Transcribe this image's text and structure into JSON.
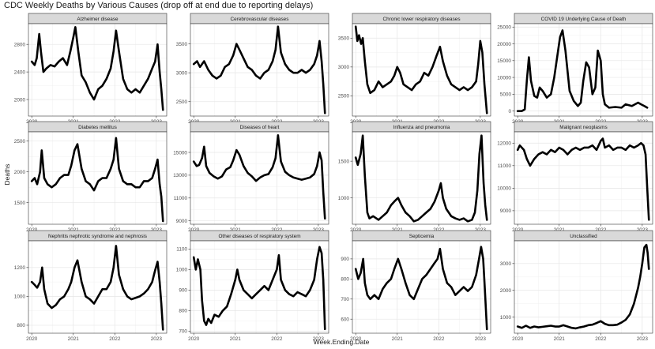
{
  "title": "CDC Weekly Deaths by Various Causes (drop off at end due to reporting delays)",
  "chart_data": {
    "type": "line",
    "title": "CDC Weekly Deaths by Various Causes (drop off at end due to reporting delays)",
    "xlabel": "Week.Ending.Date",
    "ylabel": "Deaths",
    "x_ticks": [
      "2020",
      "2021",
      "2022",
      "2023"
    ],
    "x_range": [
      2019.92,
      2023.25
    ],
    "grid": true,
    "line_color": "#000000",
    "panels": [
      {
        "name": "Alzheimer disease",
        "ylim": [
          1760,
          3100
        ],
        "y_ticks": [
          2000,
          2400,
          2800
        ],
        "x": [
          2020.0,
          2020.07,
          2020.12,
          2020.18,
          2020.22,
          2020.28,
          2020.35,
          2020.45,
          2020.55,
          2020.65,
          2020.75,
          2020.85,
          2020.93,
          2021.0,
          2021.05,
          2021.12,
          2021.2,
          2021.3,
          2021.4,
          2021.5,
          2021.6,
          2021.7,
          2021.8,
          2021.9,
          2021.97,
          2022.03,
          2022.1,
          2022.2,
          2022.3,
          2022.4,
          2022.5,
          2022.6,
          2022.7,
          2022.8,
          2022.9,
          2022.97,
          2023.03,
          2023.08,
          2023.12,
          2023.16
        ],
        "y": [
          2550,
          2500,
          2600,
          2950,
          2700,
          2400,
          2450,
          2500,
          2480,
          2550,
          2600,
          2500,
          2700,
          2900,
          3050,
          2700,
          2350,
          2250,
          2100,
          2000,
          2150,
          2200,
          2300,
          2450,
          2700,
          3000,
          2700,
          2300,
          2150,
          2100,
          2150,
          2100,
          2200,
          2300,
          2450,
          2550,
          2800,
          2400,
          2150,
          1850
        ]
      },
      {
        "name": "Cerebrovascular diseases",
        "ylim": [
          2250,
          3850
        ],
        "y_ticks": [
          2500,
          3000,
          3500
        ],
        "x": [
          2020.0,
          2020.08,
          2020.15,
          2020.25,
          2020.35,
          2020.45,
          2020.55,
          2020.65,
          2020.75,
          2020.85,
          2020.95,
          2021.03,
          2021.1,
          2021.2,
          2021.3,
          2021.4,
          2021.5,
          2021.6,
          2021.7,
          2021.8,
          2021.9,
          2021.97,
          2022.03,
          2022.1,
          2022.2,
          2022.3,
          2022.4,
          2022.5,
          2022.6,
          2022.7,
          2022.8,
          2022.9,
          2022.97,
          2023.03,
          2023.08,
          2023.12,
          2023.16
        ],
        "y": [
          3150,
          3200,
          3100,
          3200,
          3050,
          2950,
          2900,
          2950,
          3100,
          3150,
          3300,
          3500,
          3400,
          3250,
          3100,
          3050,
          2950,
          2900,
          3000,
          3050,
          3200,
          3400,
          3800,
          3350,
          3150,
          3050,
          3000,
          3000,
          3050,
          3000,
          3050,
          3150,
          3300,
          3550,
          3200,
          2800,
          2300
        ]
      },
      {
        "name": "Chronic lower respiratory diseases",
        "ylim": [
          2150,
          3750
        ],
        "y_ticks": [
          2500,
          3000,
          3500
        ],
        "x": [
          2020.0,
          2020.04,
          2020.08,
          2020.13,
          2020.17,
          2020.22,
          2020.28,
          2020.35,
          2020.45,
          2020.55,
          2020.65,
          2020.75,
          2020.85,
          2020.93,
          2021.0,
          2021.07,
          2021.15,
          2021.25,
          2021.35,
          2021.45,
          2021.55,
          2021.65,
          2021.75,
          2021.85,
          2021.95,
          2022.03,
          2022.1,
          2022.2,
          2022.3,
          2022.4,
          2022.5,
          2022.6,
          2022.7,
          2022.8,
          2022.9,
          2022.95,
          2023.0,
          2023.05,
          2023.1,
          2023.16
        ],
        "y": [
          3700,
          3450,
          3550,
          3400,
          3500,
          3100,
          2700,
          2550,
          2600,
          2750,
          2650,
          2700,
          2750,
          2850,
          3000,
          2900,
          2700,
          2650,
          2600,
          2700,
          2750,
          2900,
          2850,
          3000,
          3200,
          3350,
          3100,
          2850,
          2700,
          2650,
          2600,
          2650,
          2600,
          2650,
          2750,
          3050,
          3450,
          3250,
          2700,
          2200
        ]
      },
      {
        "name": "COVID 19 Underlying Cause of Death",
        "ylim": [
          -1500,
          26000
        ],
        "y_ticks": [
          0,
          5000,
          10000,
          15000,
          20000,
          25000
        ],
        "x": [
          2020.0,
          2020.1,
          2020.17,
          2020.22,
          2020.27,
          2020.32,
          2020.4,
          2020.47,
          2020.53,
          2020.6,
          2020.7,
          2020.8,
          2020.88,
          2020.95,
          2021.02,
          2021.08,
          2021.15,
          2021.25,
          2021.35,
          2021.45,
          2021.52,
          2021.58,
          2021.65,
          2021.72,
          2021.8,
          2021.87,
          2021.93,
          2022.0,
          2022.05,
          2022.1,
          2022.2,
          2022.35,
          2022.5,
          2022.6,
          2022.75,
          2022.9,
          2022.97,
          2023.05,
          2023.12
        ],
        "y": [
          0,
          0,
          500,
          9000,
          16000,
          9000,
          4500,
          4000,
          7000,
          6000,
          4000,
          5000,
          10000,
          16000,
          22000,
          24000,
          18000,
          6000,
          3000,
          1500,
          2500,
          9000,
          14500,
          13000,
          5000,
          7000,
          18000,
          15000,
          5000,
          2000,
          1000,
          1200,
          1000,
          2000,
          1500,
          2500,
          2000,
          1500,
          1000
        ]
      },
      {
        "name": "Diabetes mellitus",
        "ylim": [
          1150,
          2650
        ],
        "y_ticks": [
          1500,
          2000,
          2500
        ],
        "x": [
          2020.0,
          2020.07,
          2020.13,
          2020.2,
          2020.24,
          2020.3,
          2020.38,
          2020.48,
          2020.58,
          2020.68,
          2020.78,
          2020.88,
          2020.95,
          2021.03,
          2021.1,
          2021.2,
          2021.3,
          2021.4,
          2021.5,
          2021.6,
          2021.7,
          2021.8,
          2021.9,
          2021.97,
          2022.03,
          2022.1,
          2022.2,
          2022.3,
          2022.4,
          2022.5,
          2022.6,
          2022.7,
          2022.8,
          2022.9,
          2022.97,
          2023.03,
          2023.08,
          2023.12,
          2023.16
        ],
        "y": [
          1850,
          1900,
          1800,
          2000,
          2350,
          1900,
          1800,
          1750,
          1800,
          1900,
          1950,
          1950,
          2100,
          2350,
          2450,
          2050,
          1850,
          1800,
          1700,
          1850,
          1900,
          1900,
          2050,
          2200,
          2550,
          2050,
          1850,
          1800,
          1800,
          1750,
          1750,
          1850,
          1850,
          1900,
          2050,
          2200,
          1800,
          1600,
          1200
        ]
      },
      {
        "name": "Diseases of heart",
        "ylim": [
          8700,
          16800
        ],
        "y_ticks": [
          9000,
          11000,
          13000,
          15000
        ],
        "x": [
          2020.0,
          2020.07,
          2020.13,
          2020.2,
          2020.25,
          2020.3,
          2020.38,
          2020.48,
          2020.58,
          2020.68,
          2020.78,
          2020.88,
          2020.95,
          2021.03,
          2021.1,
          2021.2,
          2021.3,
          2021.4,
          2021.5,
          2021.6,
          2021.7,
          2021.8,
          2021.9,
          2021.97,
          2022.03,
          2022.1,
          2022.2,
          2022.3,
          2022.4,
          2022.5,
          2022.6,
          2022.7,
          2022.8,
          2022.9,
          2022.97,
          2023.03,
          2023.08,
          2023.12,
          2023.16
        ],
        "y": [
          14200,
          13800,
          13900,
          14500,
          15500,
          13800,
          13200,
          12900,
          12700,
          12900,
          13500,
          13700,
          14300,
          15200,
          14800,
          13800,
          13200,
          12900,
          12500,
          12800,
          13000,
          13100,
          13700,
          14500,
          16500,
          14200,
          13300,
          13000,
          12800,
          12700,
          12600,
          12700,
          12800,
          13100,
          13800,
          15000,
          14300,
          11500,
          9200
        ]
      },
      {
        "name": "Influenza and pneumonia",
        "ylim": [
          640,
          1900
        ],
        "y_ticks": [
          1000,
          1500
        ],
        "x": [
          2020.0,
          2020.05,
          2020.12,
          2020.17,
          2020.22,
          2020.28,
          2020.33,
          2020.42,
          2020.55,
          2020.65,
          2020.75,
          2020.85,
          2020.93,
          2021.02,
          2021.1,
          2021.2,
          2021.3,
          2021.4,
          2021.5,
          2021.6,
          2021.7,
          2021.8,
          2021.9,
          2022.0,
          2022.05,
          2022.1,
          2022.18,
          2022.3,
          2022.4,
          2022.5,
          2022.6,
          2022.7,
          2022.8,
          2022.87,
          2022.93,
          2022.98,
          2023.03,
          2023.08,
          2023.12,
          2023.16
        ],
        "y": [
          1550,
          1450,
          1600,
          1850,
          1300,
          800,
          720,
          750,
          700,
          750,
          800,
          900,
          950,
          1000,
          900,
          800,
          750,
          680,
          700,
          750,
          800,
          850,
          950,
          1100,
          1200,
          1000,
          850,
          750,
          720,
          700,
          720,
          680,
          700,
          800,
          1100,
          1600,
          1850,
          1200,
          900,
          700
        ]
      },
      {
        "name": "Malignant neoplasms",
        "ylim": [
          8400,
          12500
        ],
        "y_ticks": [
          9000,
          10000,
          11000,
          12000
        ],
        "x": [
          2020.0,
          2020.05,
          2020.1,
          2020.15,
          2020.22,
          2020.3,
          2020.4,
          2020.5,
          2020.6,
          2020.7,
          2020.8,
          2020.9,
          2021.0,
          2021.1,
          2021.2,
          2021.3,
          2021.4,
          2021.5,
          2021.6,
          2021.7,
          2021.8,
          2021.9,
          2022.0,
          2022.05,
          2022.1,
          2022.2,
          2022.3,
          2022.4,
          2022.5,
          2022.6,
          2022.7,
          2022.8,
          2022.9,
          2022.97,
          2023.03,
          2023.08,
          2023.12,
          2023.16
        ],
        "y": [
          11700,
          11900,
          11800,
          11700,
          11300,
          11000,
          11300,
          11500,
          11600,
          11500,
          11700,
          11600,
          11800,
          11700,
          11500,
          11700,
          11800,
          11700,
          11800,
          11800,
          11900,
          11700,
          12100,
          12200,
          11800,
          11900,
          11700,
          11800,
          11800,
          11700,
          11900,
          11800,
          11900,
          12000,
          11900,
          11500,
          10000,
          8600
        ]
      },
      {
        "name": "Nephritis nephrotic syndrome and nephrosis",
        "ylim": [
          745,
          1385
        ],
        "y_ticks": [
          800,
          1000,
          1200
        ],
        "x": [
          2020.0,
          2020.07,
          2020.13,
          2020.2,
          2020.25,
          2020.3,
          2020.38,
          2020.48,
          2020.58,
          2020.68,
          2020.78,
          2020.88,
          2020.95,
          2021.03,
          2021.1,
          2021.2,
          2021.3,
          2021.4,
          2021.5,
          2021.6,
          2021.7,
          2021.8,
          2021.9,
          2021.97,
          2022.03,
          2022.1,
          2022.2,
          2022.3,
          2022.4,
          2022.5,
          2022.6,
          2022.7,
          2022.8,
          2022.9,
          2022.97,
          2023.03,
          2023.08,
          2023.12,
          2023.16
        ],
        "y": [
          1100,
          1080,
          1060,
          1100,
          1200,
          1050,
          950,
          920,
          940,
          980,
          1000,
          1050,
          1100,
          1200,
          1250,
          1100,
          1000,
          980,
          950,
          1000,
          1050,
          1050,
          1100,
          1200,
          1350,
          1150,
          1050,
          1000,
          980,
          990,
          1000,
          1020,
          1050,
          1100,
          1180,
          1240,
          1100,
          950,
          770
        ]
      },
      {
        "name": "Other diseases of respiratory system",
        "ylim": [
          690,
          1140
        ],
        "y_ticks": [
          700,
          800,
          900,
          1000,
          1100
        ],
        "x": [
          2020.0,
          2020.05,
          2020.1,
          2020.16,
          2020.2,
          2020.25,
          2020.3,
          2020.35,
          2020.42,
          2020.5,
          2020.6,
          2020.7,
          2020.8,
          2020.9,
          2021.0,
          2021.05,
          2021.1,
          2021.2,
          2021.3,
          2021.4,
          2021.5,
          2021.6,
          2021.7,
          2021.8,
          2021.9,
          2022.0,
          2022.05,
          2022.1,
          2022.2,
          2022.3,
          2022.4,
          2022.5,
          2022.6,
          2022.7,
          2022.8,
          2022.9,
          2022.97,
          2023.03,
          2023.08,
          2023.12,
          2023.16
        ],
        "y": [
          1060,
          1000,
          1050,
          1000,
          850,
          750,
          730,
          760,
          740,
          780,
          770,
          800,
          820,
          880,
          950,
          1000,
          950,
          900,
          880,
          860,
          880,
          900,
          920,
          900,
          950,
          1000,
          1070,
          950,
          900,
          880,
          870,
          890,
          880,
          870,
          900,
          950,
          1050,
          1110,
          1080,
          950,
          710
        ]
      },
      {
        "name": "Septicemia",
        "ylim": [
          530,
          990
        ],
        "y_ticks": [
          600,
          700,
          800,
          900
        ],
        "x": [
          2020.0,
          2020.06,
          2020.12,
          2020.18,
          2020.22,
          2020.28,
          2020.35,
          2020.45,
          2020.55,
          2020.65,
          2020.75,
          2020.85,
          2020.93,
          2021.02,
          2021.1,
          2021.2,
          2021.3,
          2021.4,
          2021.5,
          2021.6,
          2021.7,
          2021.8,
          2021.9,
          2021.97,
          2022.03,
          2022.1,
          2022.2,
          2022.3,
          2022.4,
          2022.5,
          2022.6,
          2022.7,
          2022.8,
          2022.9,
          2022.97,
          2023.02,
          2023.07,
          2023.11,
          2023.16
        ],
        "y": [
          850,
          800,
          830,
          900,
          780,
          720,
          700,
          720,
          700,
          750,
          780,
          800,
          850,
          900,
          850,
          780,
          720,
          700,
          750,
          800,
          820,
          850,
          880,
          900,
          950,
          850,
          780,
          760,
          720,
          740,
          760,
          740,
          760,
          820,
          900,
          960,
          900,
          750,
          550
        ]
      },
      {
        "name": "Unclassified",
        "ylim": [
          400,
          3850
        ],
        "y_ticks": [
          1000,
          2000,
          3000
        ],
        "x": [
          2020.0,
          2020.1,
          2020.2,
          2020.3,
          2020.4,
          2020.5,
          2020.6,
          2020.7,
          2020.8,
          2020.9,
          2021.0,
          2021.1,
          2021.2,
          2021.3,
          2021.4,
          2021.5,
          2021.6,
          2021.7,
          2021.8,
          2021.9,
          2022.0,
          2022.1,
          2022.2,
          2022.3,
          2022.4,
          2022.5,
          2022.6,
          2022.7,
          2022.75,
          2022.8,
          2022.85,
          2022.9,
          2022.95,
          2023.0,
          2023.05,
          2023.1,
          2023.13,
          2023.16
        ],
        "y": [
          650,
          600,
          680,
          600,
          650,
          620,
          640,
          660,
          680,
          650,
          650,
          700,
          650,
          600,
          580,
          620,
          650,
          700,
          720,
          780,
          850,
          750,
          700,
          700,
          720,
          800,
          900,
          1100,
          1300,
          1500,
          1800,
          2100,
          2500,
          3000,
          3600,
          3700,
          3400,
          2800
        ]
      }
    ]
  }
}
